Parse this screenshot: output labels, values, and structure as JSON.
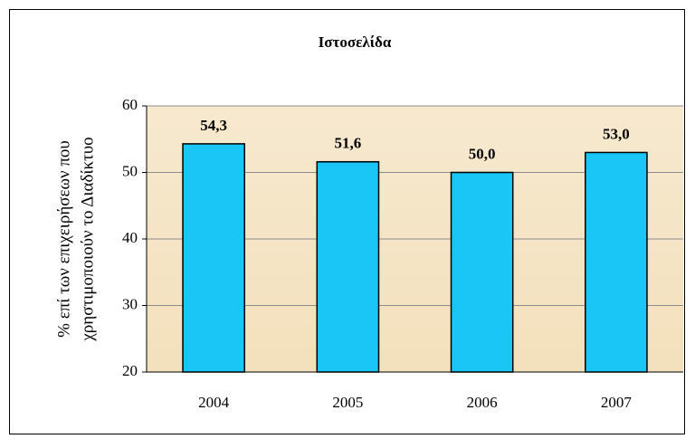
{
  "chart_data": {
    "type": "bar",
    "title": "Ιστοσελίδα",
    "ylabel": [
      "% επί των επιχειρήσεων που",
      "χρηστιμοποιούν το Διαδίκτυο"
    ],
    "categories": [
      "2004",
      "2005",
      "2006",
      "2007"
    ],
    "values": [
      54.3,
      51.6,
      50.0,
      53.0
    ],
    "value_labels": [
      "54,3",
      "51,6",
      "50,0",
      "53,0"
    ],
    "color": "#19c6f5",
    "ylim": [
      20,
      60
    ],
    "yticks": [
      20,
      30,
      40,
      50,
      60
    ],
    "grid": true
  }
}
